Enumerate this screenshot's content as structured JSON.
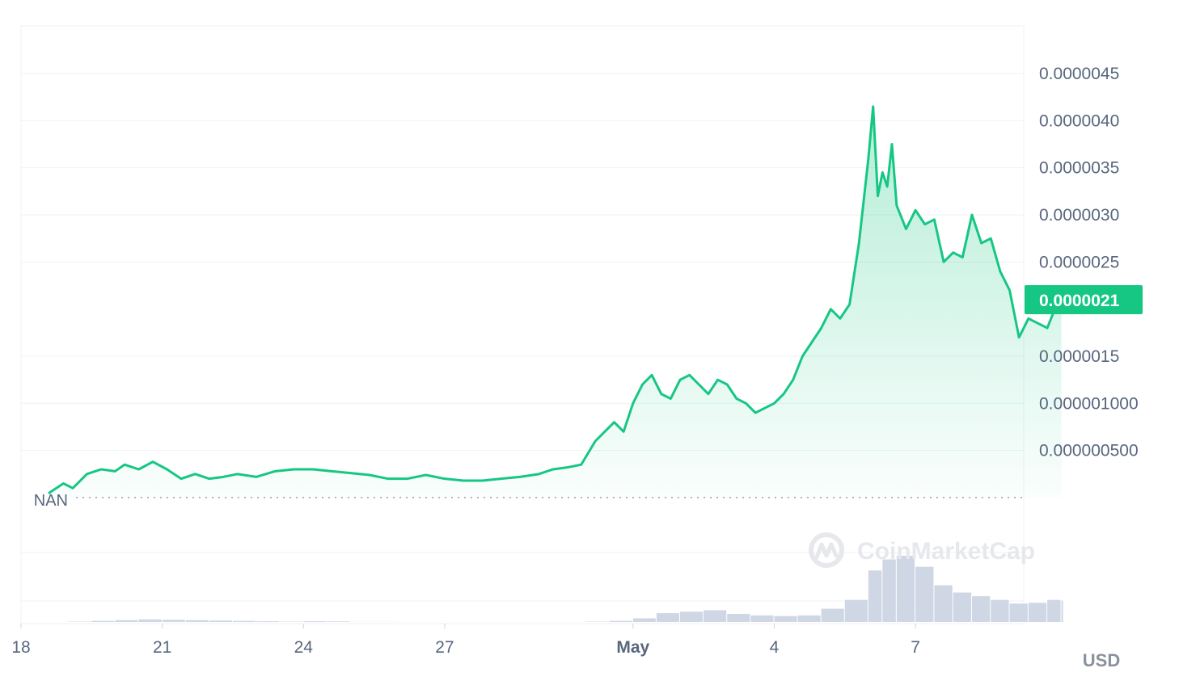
{
  "chart_data": {
    "type": "line",
    "title": "",
    "currency_label": "USD",
    "baseline_label": "NAN",
    "watermark": "CoinMarketCap",
    "current_price_label": "0.0000021",
    "current_price": 2.1e-06,
    "y_ticks": [
      {
        "value": 5e-07,
        "label": "0.000000500"
      },
      {
        "value": 1e-06,
        "label": "0.000001000"
      },
      {
        "value": 1.5e-06,
        "label": "0.0000015"
      },
      {
        "value": 2.5e-06,
        "label": "0.0000025"
      },
      {
        "value": 3e-06,
        "label": "0.0000030"
      },
      {
        "value": 3.5e-06,
        "label": "0.0000035"
      },
      {
        "value": 4e-06,
        "label": "0.0000040"
      },
      {
        "value": 4.5e-06,
        "label": "0.0000045"
      }
    ],
    "ylim": [
      0.0,
      4.8e-06
    ],
    "x_ticks": [
      {
        "day": 0,
        "label": "18",
        "bold": false
      },
      {
        "day": 3,
        "label": "21",
        "bold": false
      },
      {
        "day": 6,
        "label": "24",
        "bold": false
      },
      {
        "day": 9,
        "label": "27",
        "bold": false
      },
      {
        "day": 13,
        "label": "May",
        "bold": true
      },
      {
        "day": 16,
        "label": "4",
        "bold": false
      },
      {
        "day": 19,
        "label": "7",
        "bold": false
      }
    ],
    "xlim": [
      0,
      21.3
    ],
    "price_series": {
      "name": "",
      "color": "#16c784",
      "points": [
        [
          0.6,
          5e-08
        ],
        [
          0.9,
          1.5e-07
        ],
        [
          1.1,
          1e-07
        ],
        [
          1.4,
          2.5e-07
        ],
        [
          1.7,
          3e-07
        ],
        [
          2.0,
          2.8e-07
        ],
        [
          2.2,
          3.5e-07
        ],
        [
          2.5,
          3e-07
        ],
        [
          2.8,
          3.8e-07
        ],
        [
          3.1,
          3e-07
        ],
        [
          3.4,
          2e-07
        ],
        [
          3.7,
          2.5e-07
        ],
        [
          4.0,
          2e-07
        ],
        [
          4.3,
          2.2e-07
        ],
        [
          4.6,
          2.5e-07
        ],
        [
          5.0,
          2.2e-07
        ],
        [
          5.4,
          2.8e-07
        ],
        [
          5.8,
          3e-07
        ],
        [
          6.2,
          3e-07
        ],
        [
          6.6,
          2.8e-07
        ],
        [
          7.0,
          2.6e-07
        ],
        [
          7.4,
          2.4e-07
        ],
        [
          7.8,
          2e-07
        ],
        [
          8.2,
          2e-07
        ],
        [
          8.6,
          2.4e-07
        ],
        [
          9.0,
          2e-07
        ],
        [
          9.4,
          1.8e-07
        ],
        [
          9.8,
          1.8e-07
        ],
        [
          10.2,
          2e-07
        ],
        [
          10.6,
          2.2e-07
        ],
        [
          11.0,
          2.5e-07
        ],
        [
          11.3,
          3e-07
        ],
        [
          11.6,
          3.2e-07
        ],
        [
          11.9,
          3.5e-07
        ],
        [
          12.2,
          6e-07
        ],
        [
          12.4,
          7e-07
        ],
        [
          12.6,
          8e-07
        ],
        [
          12.8,
          7e-07
        ],
        [
          13.0,
          1e-06
        ],
        [
          13.2,
          1.2e-06
        ],
        [
          13.4,
          1.3e-06
        ],
        [
          13.6,
          1.1e-06
        ],
        [
          13.8,
          1.05e-06
        ],
        [
          14.0,
          1.25e-06
        ],
        [
          14.2,
          1.3e-06
        ],
        [
          14.4,
          1.2e-06
        ],
        [
          14.6,
          1.1e-06
        ],
        [
          14.8,
          1.25e-06
        ],
        [
          15.0,
          1.2e-06
        ],
        [
          15.2,
          1.05e-06
        ],
        [
          15.4,
          1e-06
        ],
        [
          15.6,
          9e-07
        ],
        [
          15.8,
          9.5e-07
        ],
        [
          16.0,
          1e-06
        ],
        [
          16.2,
          1.1e-06
        ],
        [
          16.4,
          1.25e-06
        ],
        [
          16.6,
          1.5e-06
        ],
        [
          16.8,
          1.65e-06
        ],
        [
          17.0,
          1.8e-06
        ],
        [
          17.2,
          2e-06
        ],
        [
          17.4,
          1.9e-06
        ],
        [
          17.6,
          2.05e-06
        ],
        [
          17.8,
          2.7e-06
        ],
        [
          18.0,
          3.6e-06
        ],
        [
          18.1,
          4.15e-06
        ],
        [
          18.2,
          3.2e-06
        ],
        [
          18.3,
          3.45e-06
        ],
        [
          18.4,
          3.3e-06
        ],
        [
          18.5,
          3.75e-06
        ],
        [
          18.6,
          3.1e-06
        ],
        [
          18.8,
          2.85e-06
        ],
        [
          19.0,
          3.05e-06
        ],
        [
          19.2,
          2.9e-06
        ],
        [
          19.4,
          2.95e-06
        ],
        [
          19.6,
          2.5e-06
        ],
        [
          19.8,
          2.6e-06
        ],
        [
          20.0,
          2.55e-06
        ],
        [
          20.2,
          3e-06
        ],
        [
          20.4,
          2.7e-06
        ],
        [
          20.6,
          2.75e-06
        ],
        [
          20.8,
          2.4e-06
        ],
        [
          21.0,
          2.2e-06
        ],
        [
          21.1,
          1.95e-06
        ],
        [
          21.2,
          1.7e-06
        ],
        [
          21.4,
          1.9e-06
        ],
        [
          21.6,
          1.85e-06
        ],
        [
          21.8,
          1.8e-06
        ],
        [
          22.0,
          2.05e-06
        ],
        [
          22.1,
          2.1e-06
        ]
      ]
    },
    "volume_series": {
      "name": "",
      "color": "#cfd6e4",
      "points": [
        [
          0.6,
          0.002
        ],
        [
          1.0,
          0.05
        ],
        [
          1.5,
          0.15
        ],
        [
          2.0,
          0.25
        ],
        [
          2.5,
          0.35
        ],
        [
          3.0,
          0.3
        ],
        [
          3.5,
          0.25
        ],
        [
          4.0,
          0.2
        ],
        [
          4.5,
          0.15
        ],
        [
          5.0,
          0.1
        ],
        [
          5.5,
          0.05
        ],
        [
          6.0,
          0.1
        ],
        [
          6.5,
          0.08
        ],
        [
          7.0,
          0.02
        ],
        [
          8.0,
          0.01
        ],
        [
          9.0,
          0.01
        ],
        [
          10.0,
          0.01
        ],
        [
          11.0,
          0.01
        ],
        [
          12.0,
          0.05
        ],
        [
          12.5,
          0.15
        ],
        [
          13.0,
          0.5
        ],
        [
          13.5,
          1.2
        ],
        [
          14.0,
          1.4
        ],
        [
          14.5,
          1.6
        ],
        [
          15.0,
          1.1
        ],
        [
          15.5,
          0.9
        ],
        [
          16.0,
          0.8
        ],
        [
          16.5,
          0.9
        ],
        [
          17.0,
          1.8
        ],
        [
          17.5,
          3.0
        ],
        [
          18.0,
          7.0
        ],
        [
          18.3,
          8.5
        ],
        [
          18.6,
          9.0
        ],
        [
          19.0,
          7.5
        ],
        [
          19.4,
          5.0
        ],
        [
          19.8,
          4.0
        ],
        [
          20.2,
          3.5
        ],
        [
          20.6,
          3.0
        ],
        [
          21.0,
          2.5
        ],
        [
          21.4,
          2.6
        ],
        [
          21.8,
          3.0
        ],
        [
          22.1,
          2.9
        ]
      ]
    }
  }
}
